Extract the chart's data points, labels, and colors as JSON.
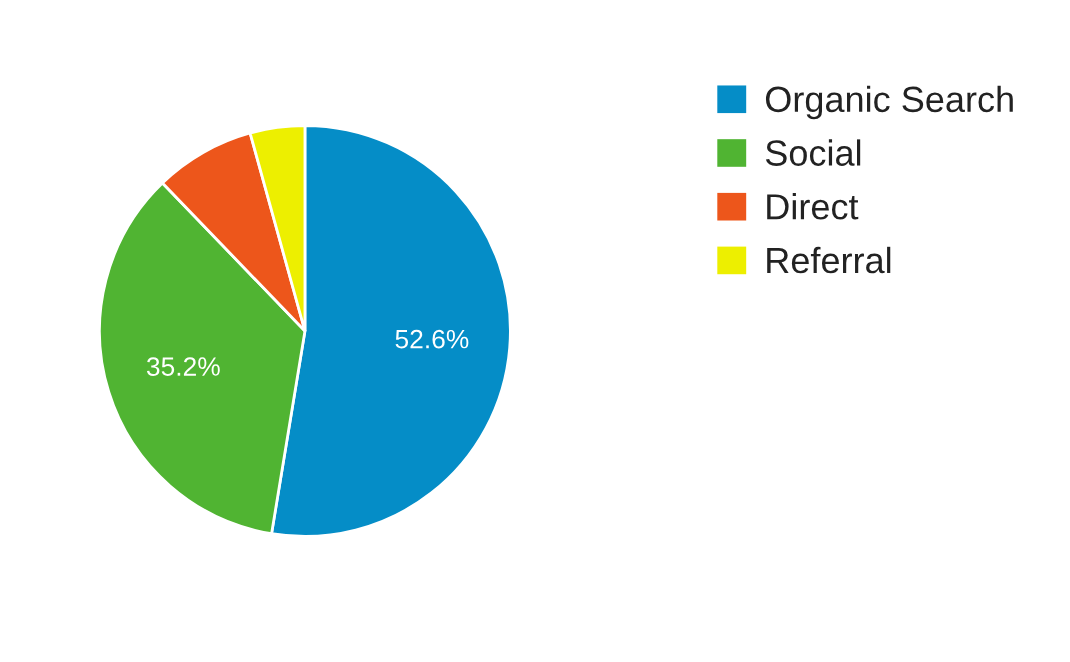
{
  "chart_data": {
    "type": "pie",
    "categories": [
      "Organic Search",
      "Social",
      "Direct",
      "Referral"
    ],
    "values": [
      52.6,
      35.2,
      7.9,
      4.3
    ],
    "colors": [
      "#058dc7",
      "#50b432",
      "#ed561b",
      "#edef00"
    ],
    "value_labels": [
      "52.6%",
      "35.2%",
      null,
      null
    ],
    "legend": "right"
  }
}
